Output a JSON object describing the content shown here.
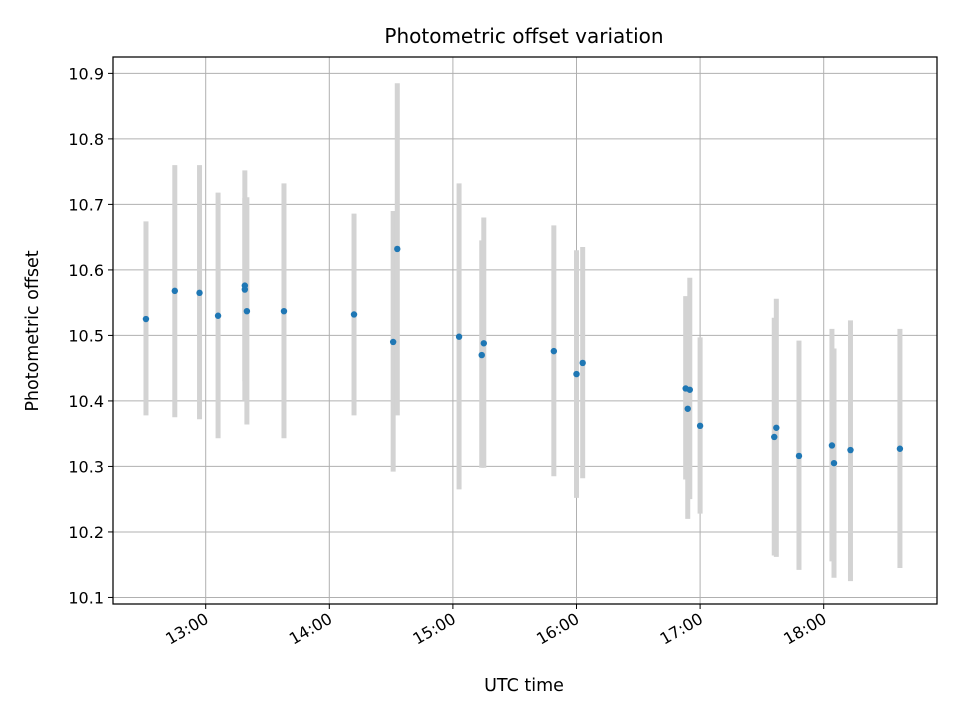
{
  "chart_data": {
    "type": "scatter",
    "title": "Photometric offset variation",
    "xlabel": "UTC time",
    "ylabel": "Photometric offset",
    "x_unit": "UTC time (HH:MM)",
    "xlim": [
      "12:15",
      "18:55"
    ],
    "ylim": [
      10.09,
      10.925
    ],
    "xticks": [
      "13:00",
      "14:00",
      "15:00",
      "16:00",
      "17:00",
      "18:00"
    ],
    "yticks": [
      10.1,
      10.2,
      10.3,
      10.4,
      10.5,
      10.6,
      10.7,
      10.8,
      10.9
    ],
    "ytick_labels": [
      "10.1",
      "10.2",
      "10.3",
      "10.4",
      "10.5",
      "10.6",
      "10.7",
      "10.8",
      "10.9"
    ],
    "grid": true,
    "point_color": "#1f77b4",
    "errorbar_color": "#d3d3d3",
    "points": [
      {
        "x": "12:31",
        "y": 10.525,
        "lo": 10.378,
        "hi": 10.674
      },
      {
        "x": "12:45",
        "y": 10.568,
        "lo": 10.375,
        "hi": 10.76
      },
      {
        "x": "12:57",
        "y": 10.565,
        "lo": 10.372,
        "hi": 10.76
      },
      {
        "x": "13:06",
        "y": 10.53,
        "lo": 10.343,
        "hi": 10.718
      },
      {
        "x": "13:19",
        "y": 10.576,
        "lo": 10.4,
        "hi": 10.752
      },
      {
        "x": "13:19",
        "y": 10.57,
        "lo": 10.43,
        "hi": 10.71
      },
      {
        "x": "13:20",
        "y": 10.537,
        "lo": 10.364,
        "hi": 10.711
      },
      {
        "x": "13:38",
        "y": 10.537,
        "lo": 10.343,
        "hi": 10.732
      },
      {
        "x": "14:12",
        "y": 10.532,
        "lo": 10.378,
        "hi": 10.686
      },
      {
        "x": "14:31",
        "y": 10.49,
        "lo": 10.292,
        "hi": 10.69
      },
      {
        "x": "14:33",
        "y": 10.632,
        "lo": 10.378,
        "hi": 10.885
      },
      {
        "x": "15:03",
        "y": 10.498,
        "lo": 10.265,
        "hi": 10.732
      },
      {
        "x": "15:14",
        "y": 10.47,
        "lo": 10.298,
        "hi": 10.645
      },
      {
        "x": "15:15",
        "y": 10.488,
        "lo": 10.298,
        "hi": 10.68
      },
      {
        "x": "15:49",
        "y": 10.476,
        "lo": 10.285,
        "hi": 10.668
      },
      {
        "x": "16:00",
        "y": 10.441,
        "lo": 10.252,
        "hi": 10.63
      },
      {
        "x": "16:03",
        "y": 10.458,
        "lo": 10.282,
        "hi": 10.635
      },
      {
        "x": "16:53",
        "y": 10.419,
        "lo": 10.28,
        "hi": 10.56
      },
      {
        "x": "16:54",
        "y": 10.388,
        "lo": 10.22,
        "hi": 10.555
      },
      {
        "x": "16:55",
        "y": 10.417,
        "lo": 10.25,
        "hi": 10.588
      },
      {
        "x": "17:00",
        "y": 10.362,
        "lo": 10.228,
        "hi": 10.497
      },
      {
        "x": "17:36",
        "y": 10.345,
        "lo": 10.164,
        "hi": 10.527
      },
      {
        "x": "17:37",
        "y": 10.359,
        "lo": 10.162,
        "hi": 10.556
      },
      {
        "x": "17:48",
        "y": 10.316,
        "lo": 10.142,
        "hi": 10.492
      },
      {
        "x": "18:04",
        "y": 10.332,
        "lo": 10.155,
        "hi": 10.51
      },
      {
        "x": "18:05",
        "y": 10.305,
        "lo": 10.13,
        "hi": 10.48
      },
      {
        "x": "18:13",
        "y": 10.325,
        "lo": 10.125,
        "hi": 10.523
      },
      {
        "x": "18:37",
        "y": 10.327,
        "lo": 10.145,
        "hi": 10.51
      }
    ]
  }
}
